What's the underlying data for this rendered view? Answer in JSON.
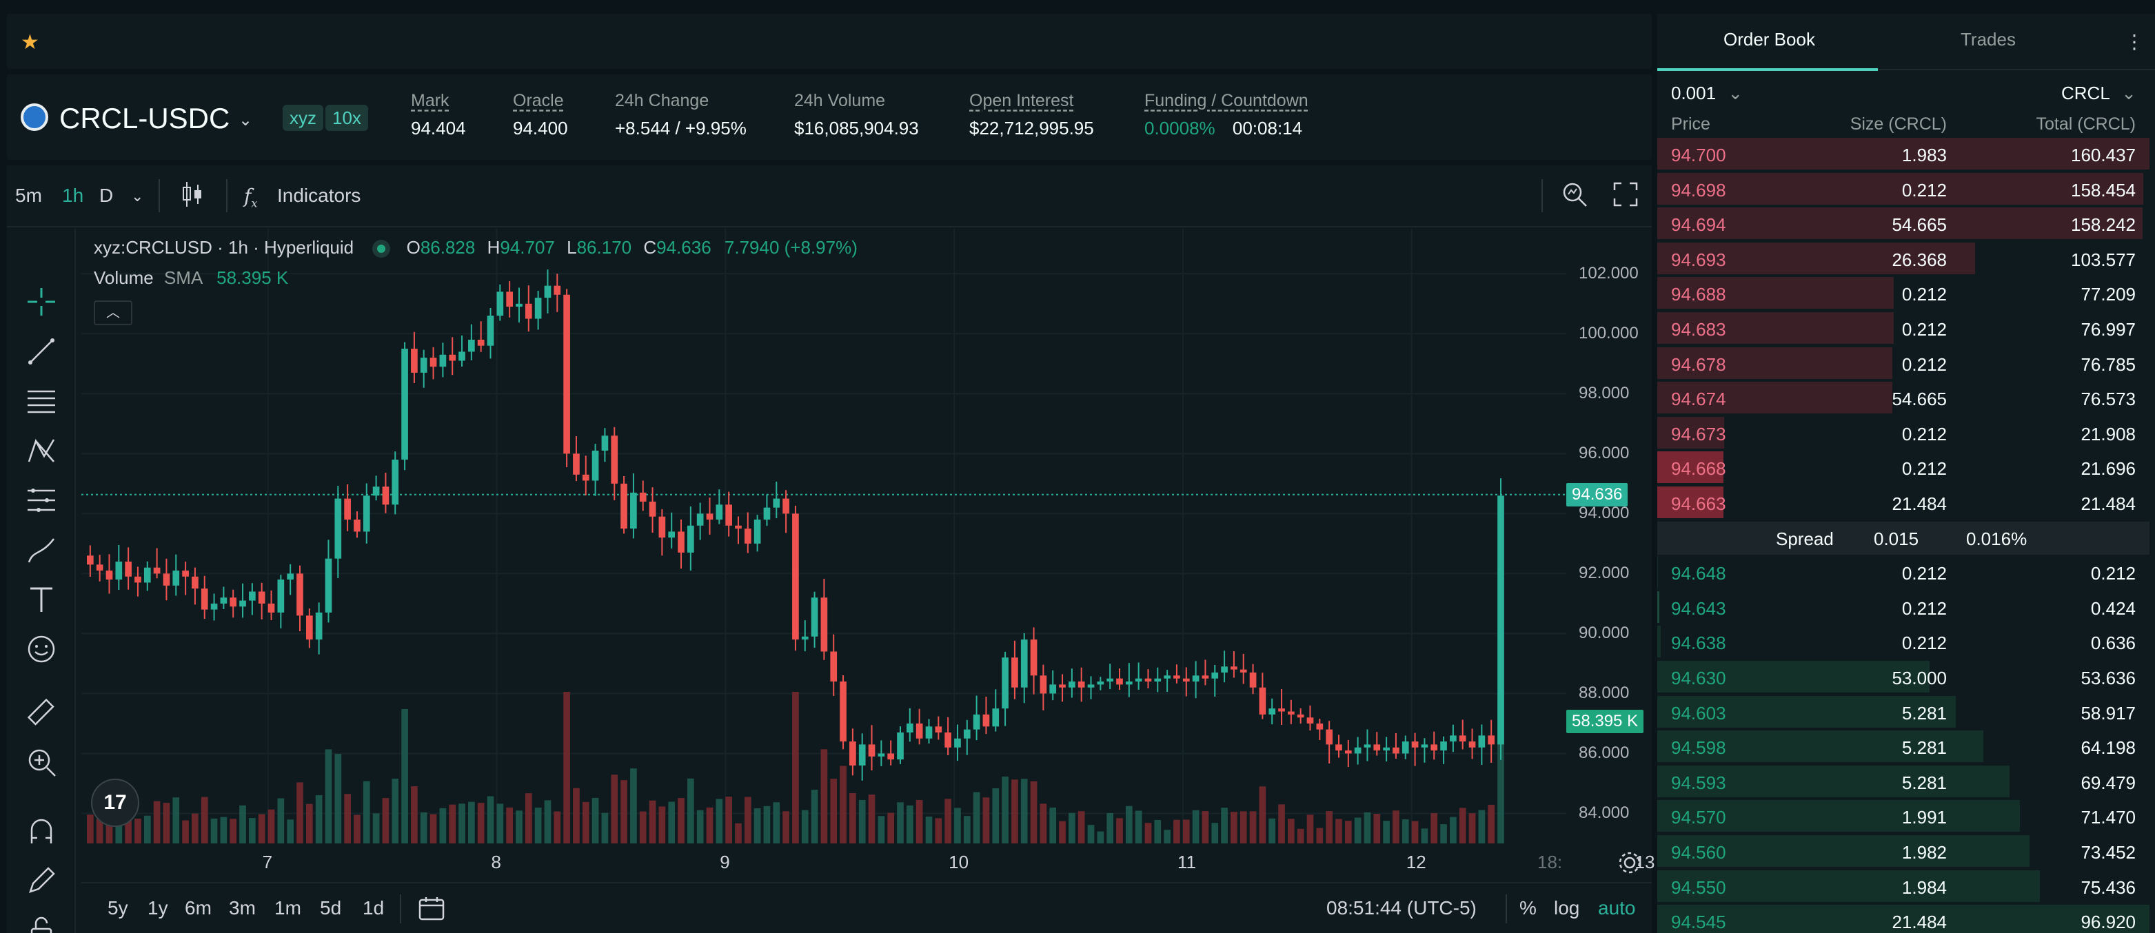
{
  "favorites": {
    "star_icon": "star-icon"
  },
  "market": {
    "pair": "CRCL-USDC",
    "tags": [
      "xyz",
      "10x"
    ],
    "stats": [
      {
        "label": "Mark",
        "value": "94.404"
      },
      {
        "label": "Oracle",
        "value": "94.400"
      },
      {
        "label": "24h Change",
        "value": "+8.544 / +9.95%"
      },
      {
        "label": "24h Volume",
        "value": "$16,085,904.93"
      },
      {
        "label": "Open Interest",
        "value": "$22,712,995.95"
      },
      {
        "label": "Funding / Countdown",
        "value": "0.0008%",
        "value2": "00:08:14"
      }
    ]
  },
  "toolbar": {
    "intervals": [
      "5m",
      "1h",
      "D"
    ],
    "active_interval": "1h",
    "indicators_label": "Indicators"
  },
  "chart": {
    "symbol_line": "xyz:CRCLUSD · 1h · Hyperliquid",
    "ohlc": {
      "o_label": "O",
      "o": "86.828",
      "h_label": "H",
      "h": "94.707",
      "l_label": "L",
      "l": "86.170",
      "c_label": "C",
      "c": "94.636",
      "change": "7.7940 (+8.97%)"
    },
    "volume_label": "Volume",
    "sma_label": "SMA",
    "sma_value": "58.395 K",
    "y_ticks": [
      "102.000",
      "100.000",
      "98.000",
      "96.000",
      "94.000",
      "92.000",
      "90.000",
      "88.000",
      "86.000",
      "84.000"
    ],
    "last_price_label": "94.636",
    "volume_label_value": "58.395 K",
    "x_ticks": [
      "7",
      "8",
      "9",
      "10",
      "11",
      "12",
      "13",
      "18:"
    ],
    "ranges": [
      "5y",
      "1y",
      "6m",
      "3m",
      "1m",
      "5d",
      "1d"
    ],
    "clock": "08:51:44 (UTC-5)",
    "scale_opts": [
      "%",
      "log",
      "auto"
    ],
    "colors": {
      "up": "#2bb29a",
      "down": "#ef5350"
    }
  },
  "chart_data": {
    "type": "candlestick",
    "title": "xyz:CRCLUSD · 1h · Hyperliquid",
    "xlabel": "",
    "ylabel": "",
    "ylim": [
      83,
      103.5
    ],
    "x_ticks": [
      "7",
      "8",
      "9",
      "10",
      "11",
      "12",
      "13"
    ],
    "closes": [
      92.3,
      92.1,
      91.8,
      92.4,
      91.9,
      91.7,
      92.2,
      92.0,
      91.6,
      92.1,
      91.9,
      91.5,
      90.8,
      91.0,
      91.2,
      90.9,
      91.1,
      91.4,
      91.0,
      90.7,
      91.8,
      92.0,
      90.6,
      89.8,
      90.7,
      92.5,
      94.5,
      93.8,
      93.4,
      94.6,
      94.9,
      94.3,
      95.8,
      99.5,
      98.7,
      99.2,
      98.9,
      99.3,
      99.1,
      99.4,
      99.8,
      99.6,
      100.6,
      101.4,
      100.9,
      101.0,
      100.5,
      101.2,
      101.6,
      101.3,
      96.0,
      95.3,
      95.1,
      96.1,
      96.6,
      95.0,
      93.5,
      94.7,
      94.4,
      93.9,
      93.2,
      93.4,
      92.7,
      93.6,
      94.0,
      93.8,
      94.3,
      93.6,
      93.5,
      93.0,
      93.8,
      94.2,
      94.5,
      94.0,
      89.8,
      89.9,
      91.2,
      89.4,
      88.4,
      86.4,
      85.6,
      86.3,
      85.9,
      86.0,
      85.8,
      86.7,
      87.0,
      86.5,
      86.9,
      86.7,
      86.2,
      86.5,
      86.8,
      87.3,
      86.9,
      87.5,
      89.2,
      88.2,
      89.8,
      88.6,
      88.0,
      88.3,
      88.2,
      88.4,
      88.2,
      88.3,
      88.4,
      88.5,
      88.3,
      88.4,
      88.5,
      88.4,
      88.5,
      88.6,
      88.5,
      88.4,
      88.6,
      88.5,
      88.7,
      88.9,
      88.8,
      88.7,
      88.2,
      87.3,
      87.5,
      87.4,
      87.3,
      87.2,
      87.0,
      86.8,
      86.3,
      86.1,
      86.0,
      86.2,
      86.3,
      86.1,
      86.2,
      86.0,
      86.4,
      86.2,
      86.3,
      86.1,
      86.4,
      86.6,
      86.4,
      86.2,
      86.6,
      86.3,
      94.6
    ],
    "volume_sma": "58.395 K"
  },
  "orderbook": {
    "tabs": [
      "Order Book",
      "Trades"
    ],
    "tick_size": "0.001",
    "unit": "CRCL",
    "headers": [
      "Price",
      "Size (CRCL)",
      "Total (CRCL)"
    ],
    "asks": [
      {
        "price": "94.700",
        "size": "1.983",
        "total": "160.437",
        "depth": 1.0
      },
      {
        "price": "94.698",
        "size": "0.212",
        "total": "158.454",
        "depth": 0.988
      },
      {
        "price": "94.694",
        "size": "54.665",
        "total": "158.242",
        "depth": 0.986
      },
      {
        "price": "94.693",
        "size": "26.368",
        "total": "103.577",
        "depth": 0.645
      },
      {
        "price": "94.688",
        "size": "0.212",
        "total": "77.209",
        "depth": 0.481
      },
      {
        "price": "94.683",
        "size": "0.212",
        "total": "76.997",
        "depth": 0.48
      },
      {
        "price": "94.678",
        "size": "0.212",
        "total": "76.785",
        "depth": 0.478
      },
      {
        "price": "94.674",
        "size": "54.665",
        "total": "76.573",
        "depth": 0.477
      },
      {
        "price": "94.673",
        "size": "0.212",
        "total": "21.908",
        "depth": 0.136
      },
      {
        "price": "94.668",
        "size": "0.212",
        "total": "21.696",
        "depth": 0.135
      },
      {
        "price": "94.663",
        "size": "21.484",
        "total": "21.484",
        "depth": 0.134
      }
    ],
    "spread": {
      "label": "Spread",
      "value": "0.015",
      "pct": "0.016%"
    },
    "bids": [
      {
        "price": "94.648",
        "size": "0.212",
        "total": "0.212",
        "depth": 0.002
      },
      {
        "price": "94.643",
        "size": "0.212",
        "total": "0.424",
        "depth": 0.004
      },
      {
        "price": "94.638",
        "size": "0.212",
        "total": "0.636",
        "depth": 0.007
      },
      {
        "price": "94.630",
        "size": "53.000",
        "total": "53.636",
        "depth": 0.553
      },
      {
        "price": "94.603",
        "size": "5.281",
        "total": "58.917",
        "depth": 0.607
      },
      {
        "price": "94.598",
        "size": "5.281",
        "total": "64.198",
        "depth": 0.662
      },
      {
        "price": "94.593",
        "size": "5.281",
        "total": "69.479",
        "depth": 0.716
      },
      {
        "price": "94.570",
        "size": "1.991",
        "total": "71.470",
        "depth": 0.737
      },
      {
        "price": "94.560",
        "size": "1.982",
        "total": "73.452",
        "depth": 0.757
      },
      {
        "price": "94.550",
        "size": "1.984",
        "total": "75.436",
        "depth": 0.778
      },
      {
        "price": "94.545",
        "size": "21.484",
        "total": "96.920",
        "depth": 1.0
      }
    ]
  }
}
